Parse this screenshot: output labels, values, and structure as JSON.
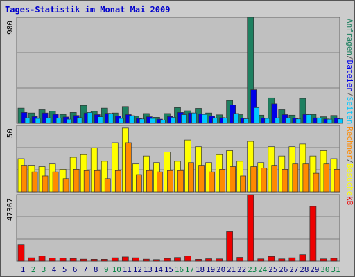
{
  "chart_title": "Tages-Statistik im Monat Mai 2009",
  "colors": {
    "background": "#cccccc",
    "plot_bg": "#c0c0c0",
    "title": "#0000cc",
    "anfragen": "#1e8060",
    "dateien": "#0000e8",
    "seiten": "#00c8ff",
    "besuche": "#ffff00",
    "rechner": "#ff8a00",
    "kb": "#ee0000",
    "weekday_label": "#000080",
    "weekend_label": "#008040"
  },
  "chart_data": [
    {
      "type": "bar",
      "panel": "top",
      "y_max_label": "980",
      "ylim": [
        0,
        980
      ],
      "categories": [
        "1",
        "2",
        "3",
        "4",
        "5",
        "6",
        "7",
        "8",
        "9",
        "10",
        "11",
        "12",
        "13",
        "14",
        "15",
        "16",
        "17",
        "18",
        "19",
        "20",
        "21",
        "22",
        "23",
        "24",
        "25",
        "26",
        "27",
        "28",
        "29",
        "30",
        "31"
      ],
      "weekend_days": [
        "2",
        "3",
        "9",
        "10",
        "16",
        "17",
        "23",
        "24",
        "30",
        "31"
      ],
      "legend": [
        {
          "text": "Anfragen",
          "color": "#1e8060"
        },
        {
          "text": "/",
          "color": "#555555"
        },
        {
          "text": "Dateien",
          "color": "#0000e8"
        },
        {
          "text": "/",
          "color": "#555555"
        },
        {
          "text": "Seiten",
          "color": "#00c8ff"
        }
      ],
      "series": [
        {
          "name": "Anfragen",
          "color": "#1e8060",
          "values": [
            140,
            95,
            125,
            112,
            82,
            100,
            165,
            110,
            140,
            95,
            155,
            65,
            90,
            55,
            90,
            145,
            115,
            138,
            95,
            78,
            210,
            80,
            980,
            75,
            235,
            125,
            75,
            230,
            82,
            60,
            72
          ]
        },
        {
          "name": "Dateien",
          "color": "#0000e8",
          "values": [
            100,
            62,
            95,
            82,
            58,
            72,
            95,
            80,
            92,
            68,
            80,
            45,
            60,
            38,
            62,
            100,
            95,
            85,
            65,
            52,
            170,
            48,
            310,
            48,
            180,
            80,
            48,
            82,
            50,
            40,
            48
          ]
        },
        {
          "name": "Seiten",
          "color": "#00c8ff",
          "values": [
            50,
            45,
            50,
            48,
            38,
            52,
            100,
            60,
            90,
            45,
            70,
            40,
            45,
            30,
            55,
            80,
            95,
            82,
            50,
            50,
            90,
            42,
            145,
            45,
            50,
            50,
            40,
            80,
            48,
            38,
            40
          ]
        }
      ]
    },
    {
      "type": "bar",
      "panel": "middle",
      "y_max_label": "50",
      "ylim": [
        0,
        50
      ],
      "categories": [
        "1",
        "2",
        "3",
        "4",
        "5",
        "6",
        "7",
        "8",
        "9",
        "10",
        "11",
        "12",
        "13",
        "14",
        "15",
        "16",
        "17",
        "18",
        "19",
        "20",
        "21",
        "22",
        "23",
        "24",
        "25",
        "26",
        "27",
        "28",
        "29",
        "30",
        "31"
      ],
      "legend": [
        {
          "text": "Rechner",
          "color": "#ff8a00"
        },
        {
          "text": "/",
          "color": "#555555"
        },
        {
          "text": "Besuche",
          "color": "#ffff00"
        }
      ],
      "series": [
        {
          "name": "Besuche",
          "color": "#ffff00",
          "values": [
            25,
            20,
            19,
            21,
            17,
            26,
            28,
            33,
            23,
            37,
            48,
            21,
            27,
            22,
            30,
            23,
            39,
            34,
            22,
            28,
            31,
            23,
            38,
            22,
            34,
            27,
            34,
            36,
            27,
            31,
            25
          ]
        },
        {
          "name": "Rechner",
          "color": "#ff8a00",
          "values": [
            20,
            15,
            12,
            15,
            10,
            17,
            16,
            16,
            10,
            16,
            37,
            13,
            16,
            15,
            16,
            16,
            22,
            20,
            15,
            17,
            19,
            12,
            19,
            18,
            20,
            17,
            21,
            21,
            14,
            21,
            17
          ]
        }
      ]
    },
    {
      "type": "bar",
      "panel": "bottom",
      "y_max_label": "47367",
      "ylim": [
        0,
        47367
      ],
      "categories": [
        "1",
        "2",
        "3",
        "4",
        "5",
        "6",
        "7",
        "8",
        "9",
        "10",
        "11",
        "12",
        "13",
        "14",
        "15",
        "16",
        "17",
        "18",
        "19",
        "20",
        "21",
        "22",
        "23",
        "24",
        "25",
        "26",
        "27",
        "28",
        "29",
        "30",
        "31"
      ],
      "legend": [
        {
          "text": "kB",
          "color": "#ee0000"
        }
      ],
      "series": [
        {
          "name": "kB",
          "color": "#ee0000",
          "values": [
            11500,
            2400,
            3600,
            2200,
            2100,
            1900,
            1400,
            1300,
            1300,
            2400,
            3000,
            2400,
            1400,
            1100,
            1900,
            2600,
            3600,
            1300,
            1700,
            1600,
            21000,
            2700,
            47367,
            1600,
            3300,
            1600,
            2400,
            4600,
            39000,
            1600,
            2000
          ]
        }
      ]
    }
  ]
}
